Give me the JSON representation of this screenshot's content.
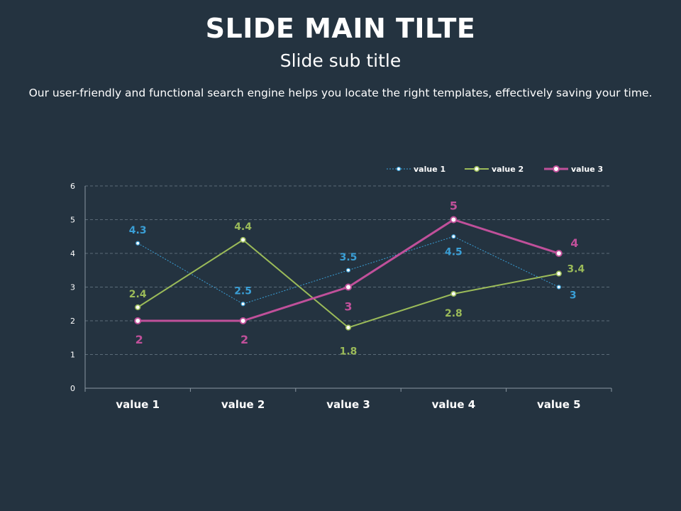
{
  "slide": {
    "title": "SLIDE MAIN TILTE",
    "subtitle": "Slide sub title",
    "description": "Our user-friendly and functional search engine helps you locate the right templates, effectively saving your time."
  },
  "chart_data": {
    "type": "line",
    "categories": [
      "value 1",
      "value 2",
      "value 3",
      "value 4",
      "value 5"
    ],
    "series": [
      {
        "name": "value 1",
        "values": [
          4.3,
          2.5,
          3.5,
          4.5,
          3
        ],
        "color": "#3a9fd6",
        "style": "dotted"
      },
      {
        "name": "value 2",
        "values": [
          2.4,
          4.4,
          1.8,
          2.8,
          3.4
        ],
        "color": "#9bbb59",
        "style": "solid"
      },
      {
        "name": "value 3",
        "values": [
          2,
          2,
          3,
          5,
          4
        ],
        "color": "#c0509a",
        "style": "solid-thick"
      }
    ],
    "ylim": [
      0,
      6
    ],
    "yticks": [
      0,
      1,
      2,
      3,
      4,
      5,
      6
    ],
    "grid": true,
    "legend": "top-right",
    "data_labels": true,
    "title": "",
    "xlabel": "",
    "ylabel": ""
  }
}
